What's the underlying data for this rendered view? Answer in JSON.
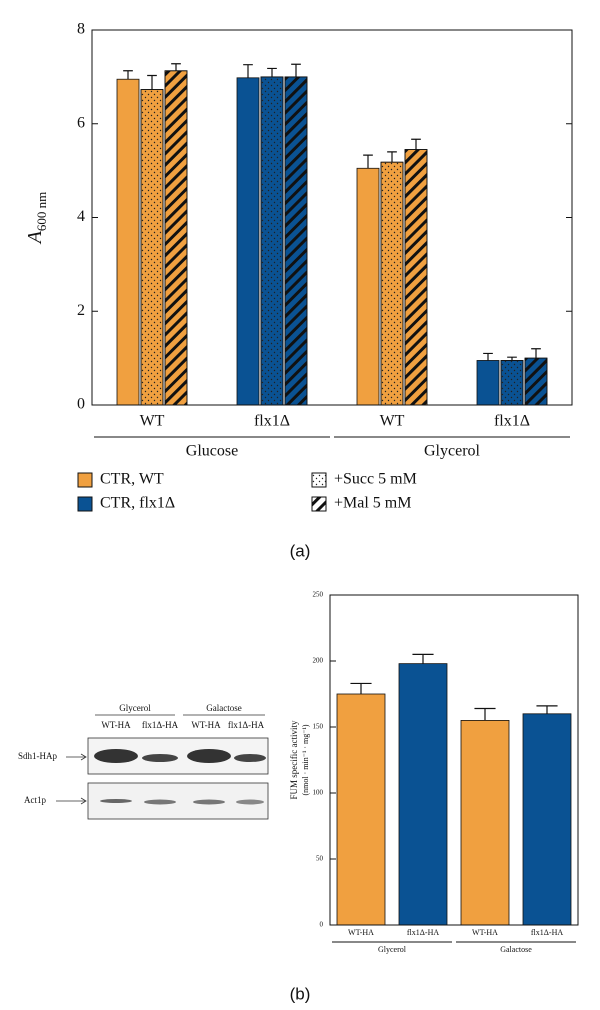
{
  "chart_data": [
    {
      "type": "bar",
      "y_label": {
        "main": "A",
        "sub": "600 nm"
      },
      "categories": [
        "WT",
        "flx1Δ",
        "WT",
        "flx1Δ"
      ],
      "groups": [
        "Glucose",
        "Glycerol"
      ],
      "category_colors": [
        "#f0a040",
        "#0a5293",
        "#f0a040",
        "#0a5293"
      ],
      "series": [
        {
          "pattern": "none",
          "values": [
            6.95,
            6.98,
            5.05,
            0.95
          ],
          "errors": [
            0.18,
            0.28,
            0.28,
            0.15
          ]
        },
        {
          "pattern": "dots",
          "values": [
            6.73,
            7.0,
            5.18,
            0.95
          ],
          "errors": [
            0.3,
            0.18,
            0.22,
            0.07
          ]
        },
        {
          "pattern": "hatch",
          "values": [
            7.13,
            7.0,
            5.45,
            1.0
          ],
          "errors": [
            0.15,
            0.27,
            0.22,
            0.2
          ]
        }
      ],
      "legend": [
        {
          "label": "CTR, WT",
          "color": "#f0a040"
        },
        {
          "label": "CTR, flx1Δ",
          "color": "#0a5293"
        },
        {
          "label": "+Succ 5 mM",
          "pattern": "dots"
        },
        {
          "label": "+Mal 5 mM",
          "pattern": "hatch"
        }
      ],
      "ylim": [
        0,
        8
      ],
      "yticks": [
        0,
        2,
        4,
        6,
        8
      ],
      "panel": "(a)"
    },
    {
      "type": "bar",
      "y_label": {
        "main": "FUM specific activity",
        "sub": "(nmol · min⁻¹ · mg⁻¹)"
      },
      "categories": [
        "WT-HA",
        "flx1Δ-HA",
        "WT-HA",
        "flx1Δ-HA"
      ],
      "groups": [
        "Glycerol",
        "Galactose"
      ],
      "category_colors": [
        "#f0a040",
        "#0a5293",
        "#f0a040",
        "#0a5293"
      ],
      "series": [
        {
          "pattern": "none",
          "values": [
            175,
            198,
            155,
            160
          ],
          "errors": [
            8,
            7,
            9,
            6
          ]
        }
      ],
      "ylim": [
        0,
        250
      ],
      "yticks": [
        0,
        50,
        100,
        150,
        200,
        250
      ],
      "panel": "(b)"
    }
  ],
  "blot": {
    "conditions": [
      "Glycerol",
      "Galactose"
    ],
    "lanes": [
      "WT-HA",
      "flx1Δ-HA",
      "WT-HA",
      "flx1Δ-HA"
    ],
    "proteins": [
      "Sdh1-HAp",
      "Act1p"
    ]
  }
}
